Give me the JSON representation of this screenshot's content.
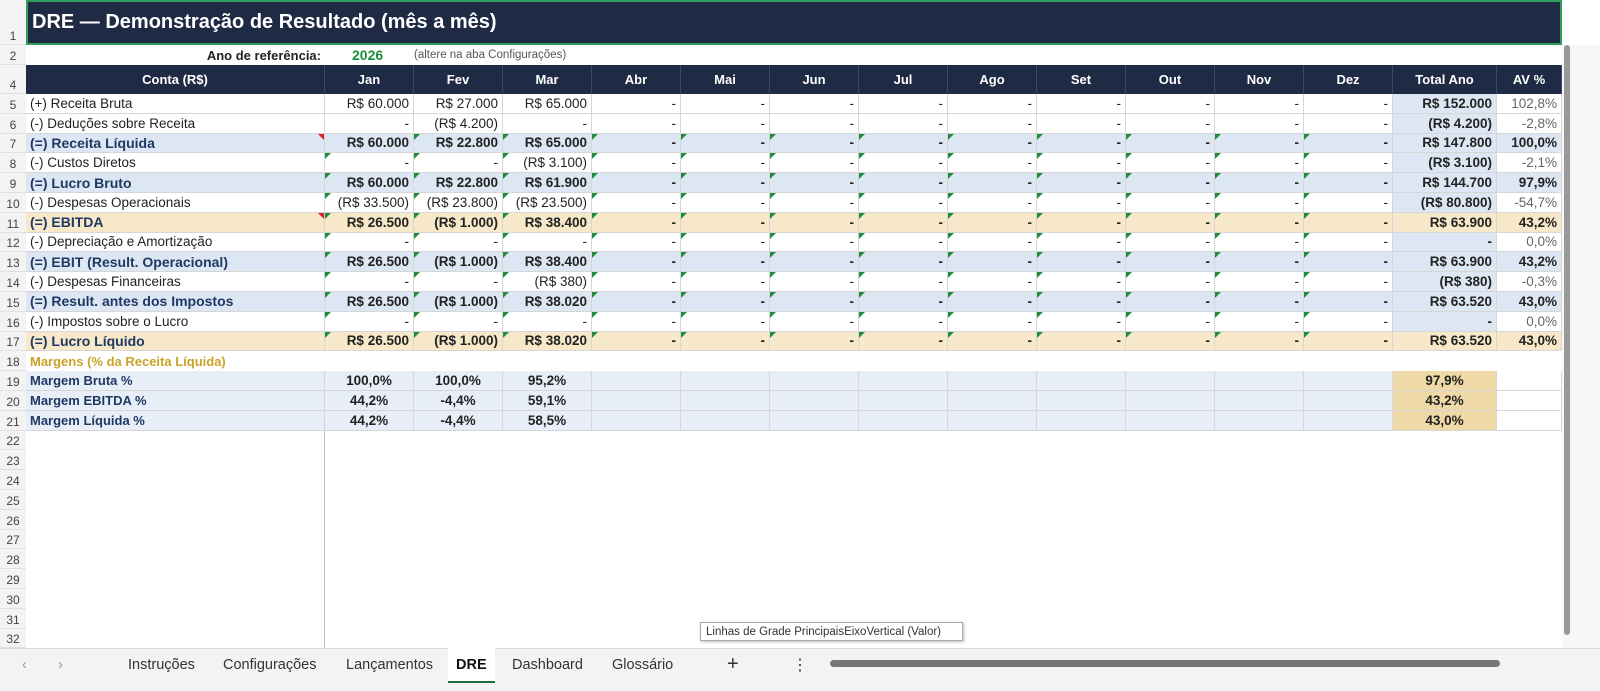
{
  "title": "DRE — Demonstração de Resultado (mês a mês)",
  "ref_label": "Ano de referência:",
  "ref_year": "2026",
  "ref_note": "(altere na aba Configurações)",
  "row_numbers": [
    1,
    2,
    4,
    5,
    6,
    7,
    8,
    9,
    10,
    11,
    12,
    13,
    14,
    15,
    16,
    17,
    18,
    19,
    20,
    21,
    22,
    23,
    24,
    25,
    26,
    27,
    28,
    29,
    30,
    31,
    32
  ],
  "columns": [
    "Conta (R$)",
    "Jan",
    "Fev",
    "Mar",
    "Abr",
    "Mai",
    "Jun",
    "Jul",
    "Ago",
    "Set",
    "Out",
    "Nov",
    "Dez",
    "Total Ano",
    "AV %"
  ],
  "rows": [
    {
      "label": "(+) Receita Bruta",
      "style": "item",
      "cells": [
        "R$ 60.000",
        "R$ 27.000",
        "R$ 65.000",
        "-",
        "-",
        "-",
        "-",
        "-",
        "-",
        "-",
        "-",
        "-"
      ],
      "total": "R$ 152.000",
      "av": "102,8%"
    },
    {
      "label": "(-) Deduções sobre Receita",
      "style": "item",
      "cells": [
        "-",
        "(R$ 4.200)",
        "-",
        "-",
        "-",
        "-",
        "-",
        "-",
        "-",
        "-",
        "-",
        "-"
      ],
      "total": "(R$ 4.200)",
      "av": "-2,8%"
    },
    {
      "label": "(=) Receita Líquida",
      "style": "sub",
      "cells": [
        "R$ 60.000",
        "R$ 22.800",
        "R$ 65.000",
        "-",
        "-",
        "-",
        "-",
        "-",
        "-",
        "-",
        "-",
        "-"
      ],
      "total": "R$ 147.800",
      "av": "100,0%"
    },
    {
      "label": "(-) Custos Diretos",
      "style": "item",
      "cells": [
        "-",
        "-",
        "(R$ 3.100)",
        "-",
        "-",
        "-",
        "-",
        "-",
        "-",
        "-",
        "-",
        "-"
      ],
      "total": "(R$ 3.100)",
      "av": "-2,1%"
    },
    {
      "label": "(=) Lucro Bruto",
      "style": "sub",
      "cells": [
        "R$ 60.000",
        "R$ 22.800",
        "R$ 61.900",
        "-",
        "-",
        "-",
        "-",
        "-",
        "-",
        "-",
        "-",
        "-"
      ],
      "total": "R$ 144.700",
      "av": "97,9%"
    },
    {
      "label": "(-) Despesas Operacionais",
      "style": "item",
      "cells": [
        "(R$ 33.500)",
        "(R$ 23.800)",
        "(R$ 23.500)",
        "-",
        "-",
        "-",
        "-",
        "-",
        "-",
        "-",
        "-",
        "-"
      ],
      "total": "(R$ 80.800)",
      "av": "-54,7%"
    },
    {
      "label": "(=) EBITDA",
      "style": "highlight",
      "cells": [
        "R$ 26.500",
        "(R$ 1.000)",
        "R$ 38.400",
        "-",
        "-",
        "-",
        "-",
        "-",
        "-",
        "-",
        "-",
        "-"
      ],
      "total": "R$ 63.900",
      "av": "43,2%"
    },
    {
      "label": "(-) Depreciação e Amortização",
      "style": "item",
      "cells": [
        "-",
        "-",
        "-",
        "-",
        "-",
        "-",
        "-",
        "-",
        "-",
        "-",
        "-",
        "-"
      ],
      "total": "-",
      "av": "0,0%"
    },
    {
      "label": "(=) EBIT (Result. Operacional)",
      "style": "sub",
      "cells": [
        "R$ 26.500",
        "(R$ 1.000)",
        "R$ 38.400",
        "-",
        "-",
        "-",
        "-",
        "-",
        "-",
        "-",
        "-",
        "-"
      ],
      "total": "R$ 63.900",
      "av": "43,2%"
    },
    {
      "label": "(-) Despesas Financeiras",
      "style": "item",
      "cells": [
        "-",
        "-",
        "(R$ 380)",
        "-",
        "-",
        "-",
        "-",
        "-",
        "-",
        "-",
        "-",
        "-"
      ],
      "total": "(R$ 380)",
      "av": "-0,3%"
    },
    {
      "label": "(=) Result. antes dos Impostos",
      "style": "sub",
      "cells": [
        "R$ 26.500",
        "(R$ 1.000)",
        "R$ 38.020",
        "-",
        "-",
        "-",
        "-",
        "-",
        "-",
        "-",
        "-",
        "-"
      ],
      "total": "R$ 63.520",
      "av": "43,0%"
    },
    {
      "label": "(-) Impostos sobre o Lucro",
      "style": "item",
      "cells": [
        "-",
        "-",
        "-",
        "-",
        "-",
        "-",
        "-",
        "-",
        "-",
        "-",
        "-",
        "-"
      ],
      "total": "-",
      "av": "0,0%"
    },
    {
      "label": "(=) Lucro Líquido",
      "style": "highlight",
      "cells": [
        "R$ 26.500",
        "(R$ 1.000)",
        "R$ 38.020",
        "-",
        "-",
        "-",
        "-",
        "-",
        "-",
        "-",
        "-",
        "-"
      ],
      "total": "R$ 63.520",
      "av": "43,0%"
    }
  ],
  "margins_title": "Margens (% da Receita Líquida)",
  "margins": [
    {
      "label": "Margem Bruta %",
      "cells": [
        "100,0%",
        "100,0%",
        "95,2%"
      ],
      "total": "97,9%"
    },
    {
      "label": "Margem EBITDA %",
      "cells": [
        "44,2%",
        "-4,4%",
        "59,1%"
      ],
      "total": "43,2%"
    },
    {
      "label": "Margem Líquida %",
      "cells": [
        "44,2%",
        "-4,4%",
        "58,5%"
      ],
      "total": "43,0%"
    }
  ],
  "tooltip": "Linhas de Grade PrincipaisEixoVertical (Valor)",
  "tabs": [
    "Instruções",
    "Configurações",
    "Lançamentos",
    "DRE",
    "Dashboard",
    "Glossário"
  ],
  "active_tab": 3
}
